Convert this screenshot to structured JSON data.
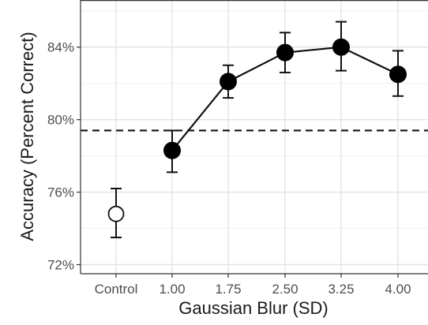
{
  "chart_data": {
    "type": "scatter",
    "title": "",
    "xlabel": "Gaussian Blur (SD)",
    "ylabel": "Accuracy (Percent Correct)",
    "categories": [
      "Control",
      "1.00",
      "1.75",
      "2.50",
      "3.25",
      "4.00"
    ],
    "ylim": [
      71.5,
      86.6
    ],
    "yticks": [
      72,
      76,
      80,
      84
    ],
    "ytick_labels": [
      "72%",
      "76%",
      "80%",
      "84%"
    ],
    "grid": true,
    "reference_line": {
      "y": 79.4,
      "style": "dashed"
    },
    "control": {
      "category": "Control",
      "value": 74.8,
      "err_low": 73.5,
      "err_high": 76.2,
      "marker": "open-circle"
    },
    "series": [
      {
        "marker": "filled-circle",
        "connected": true,
        "categories": [
          "1.00",
          "1.75",
          "2.50",
          "3.25",
          "4.00"
        ],
        "values": [
          78.3,
          82.1,
          83.7,
          84.0,
          82.5
        ],
        "err_low": [
          77.1,
          81.2,
          82.6,
          82.7,
          81.3
        ],
        "err_high": [
          79.4,
          83.0,
          84.8,
          85.4,
          83.8
        ]
      }
    ]
  }
}
